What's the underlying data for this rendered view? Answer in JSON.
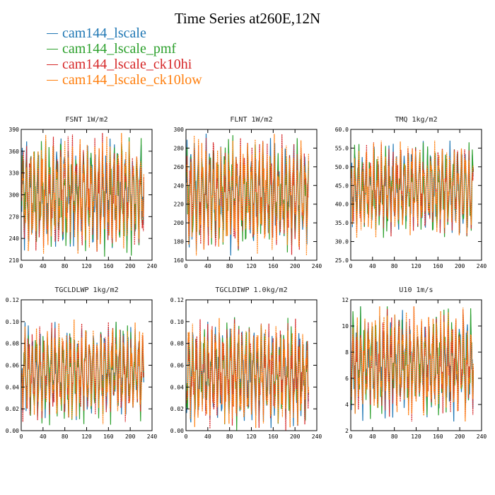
{
  "figure": {
    "title": "Time Series at260E,12N"
  },
  "legend": [
    {
      "name": "cam144_lscale",
      "color": "#1f77b4"
    },
    {
      "name": "cam144_lscale_pmf",
      "color": "#2ca02c"
    },
    {
      "name": "cam144_lscale_ck10hi",
      "color": "#d62728"
    },
    {
      "name": "cam144_lscale_ck10low",
      "color": "#ff7f0e"
    }
  ],
  "chart_data": [
    {
      "type": "line",
      "title": "FSNT   1W/m2",
      "xlim": [
        0,
        240
      ],
      "ylim": [
        210,
        390
      ],
      "xticks": [
        "0",
        "40",
        "80",
        "120",
        "160",
        "200",
        "240"
      ],
      "yticks": [
        "210",
        "240",
        "270",
        "300",
        "330",
        "360",
        "390"
      ],
      "n_points": 225,
      "value_range_approx": [
        215,
        385
      ],
      "series": [
        "cam144_lscale",
        "cam144_lscale_pmf",
        "cam144_lscale_ck10hi",
        "cam144_lscale_ck10low"
      ]
    },
    {
      "type": "line",
      "title": "FLNT   1W/m2",
      "xlim": [
        0,
        240
      ],
      "ylim": [
        160,
        300
      ],
      "xticks": [
        "0",
        "40",
        "80",
        "120",
        "160",
        "200",
        "240"
      ],
      "yticks": [
        "160",
        "180",
        "200",
        "220",
        "240",
        "260",
        "280",
        "300"
      ],
      "n_points": 225,
      "value_range_approx": [
        165,
        296
      ],
      "series": [
        "cam144_lscale",
        "cam144_lscale_pmf",
        "cam144_lscale_ck10hi",
        "cam144_lscale_ck10low"
      ]
    },
    {
      "type": "line",
      "title": "TMQ   1kg/m2",
      "xlim": [
        0,
        240
      ],
      "ylim": [
        25,
        60
      ],
      "xticks": [
        "0",
        "40",
        "80",
        "120",
        "160",
        "200",
        "240"
      ],
      "yticks": [
        "25.0",
        "30.0",
        "35.0",
        "40.0",
        "45.0",
        "50.0",
        "55.0",
        "60.0"
      ],
      "n_points": 225,
      "value_range_approx": [
        31,
        57
      ],
      "series": [
        "cam144_lscale",
        "cam144_lscale_pmf",
        "cam144_lscale_ck10hi",
        "cam144_lscale_ck10low"
      ]
    },
    {
      "type": "line",
      "title": "TGCLDLWP   1kg/m2",
      "xlim": [
        0,
        240
      ],
      "ylim": [
        0,
        0.12
      ],
      "xticks": [
        "0",
        "40",
        "80",
        "120",
        "160",
        "200",
        "240"
      ],
      "yticks": [
        "0.00",
        "0.02",
        "0.04",
        "0.06",
        "0.08",
        "0.10",
        "0.12"
      ],
      "n_points": 225,
      "value_range_approx": [
        0.005,
        0.102
      ],
      "series": [
        "cam144_lscale",
        "cam144_lscale_pmf",
        "cam144_lscale_ck10hi",
        "cam144_lscale_ck10low"
      ]
    },
    {
      "type": "line",
      "title": "TGCLDIWP   1.0kg/m2",
      "xlim": [
        0,
        240
      ],
      "ylim": [
        0,
        0.12
      ],
      "xticks": [
        "0",
        "40",
        "80",
        "120",
        "160",
        "200",
        "240"
      ],
      "yticks": [
        "0.00",
        "0.02",
        "0.04",
        "0.06",
        "0.08",
        "0.10",
        "0.12"
      ],
      "n_points": 225,
      "value_range_approx": [
        0.0,
        0.104
      ],
      "series": [
        "cam144_lscale",
        "cam144_lscale_pmf",
        "cam144_lscale_ck10hi",
        "cam144_lscale_ck10low"
      ]
    },
    {
      "type": "line",
      "title": "U10   1m/s",
      "xlim": [
        0,
        240
      ],
      "ylim": [
        2,
        12
      ],
      "xticks": [
        "0",
        "40",
        "80",
        "120",
        "160",
        "200",
        "240"
      ],
      "yticks": [
        "2",
        "4",
        "6",
        "8",
        "10",
        "12"
      ],
      "n_points": 225,
      "value_range_approx": [
        2.7,
        11.5
      ],
      "series": [
        "cam144_lscale",
        "cam144_lscale_pmf",
        "cam144_lscale_ck10hi",
        "cam144_lscale_ck10low"
      ]
    }
  ]
}
